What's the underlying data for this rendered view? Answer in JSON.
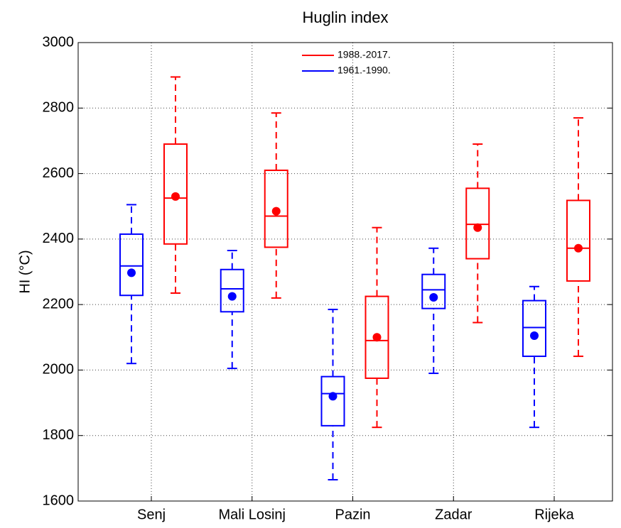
{
  "chart_data": {
    "type": "box",
    "title": "Huglin index",
    "y_label": "HI (°C)",
    "categories": [
      "Senj",
      "Mali Losinj",
      "Pazin",
      "Zadar",
      "Rijeka"
    ],
    "series": [
      {
        "name": "1961.-1990.",
        "color": "#0000ff",
        "min": [
          2020,
          2005,
          1665,
          1990,
          1825
        ],
        "q1": [
          2228,
          2178,
          1830,
          2188,
          2042
        ],
        "median": [
          2318,
          2248,
          1928,
          2245,
          2130
        ],
        "q3": [
          2415,
          2307,
          1980,
          2292,
          2212
        ],
        "max": [
          2505,
          2365,
          2185,
          2372,
          2255
        ],
        "mean": [
          2297,
          2225,
          1920,
          2222,
          2105
        ]
      },
      {
        "name": "1988.-2017.",
        "color": "#ff0000",
        "min": [
          2235,
          2220,
          1825,
          2145,
          2042
        ],
        "q1": [
          2385,
          2375,
          1975,
          2340,
          2272
        ],
        "median": [
          2525,
          2470,
          2090,
          2445,
          2372
        ],
        "q3": [
          2690,
          2610,
          2225,
          2555,
          2518
        ],
        "max": [
          2895,
          2785,
          2435,
          2690,
          2770
        ],
        "mean": [
          2530,
          2485,
          2100,
          2435,
          2372
        ]
      }
    ],
    "ylim": [
      1600,
      3000
    ],
    "yticks": [
      1600,
      1800,
      2000,
      2200,
      2400,
      2600,
      2800,
      3000
    ],
    "grid": true
  }
}
